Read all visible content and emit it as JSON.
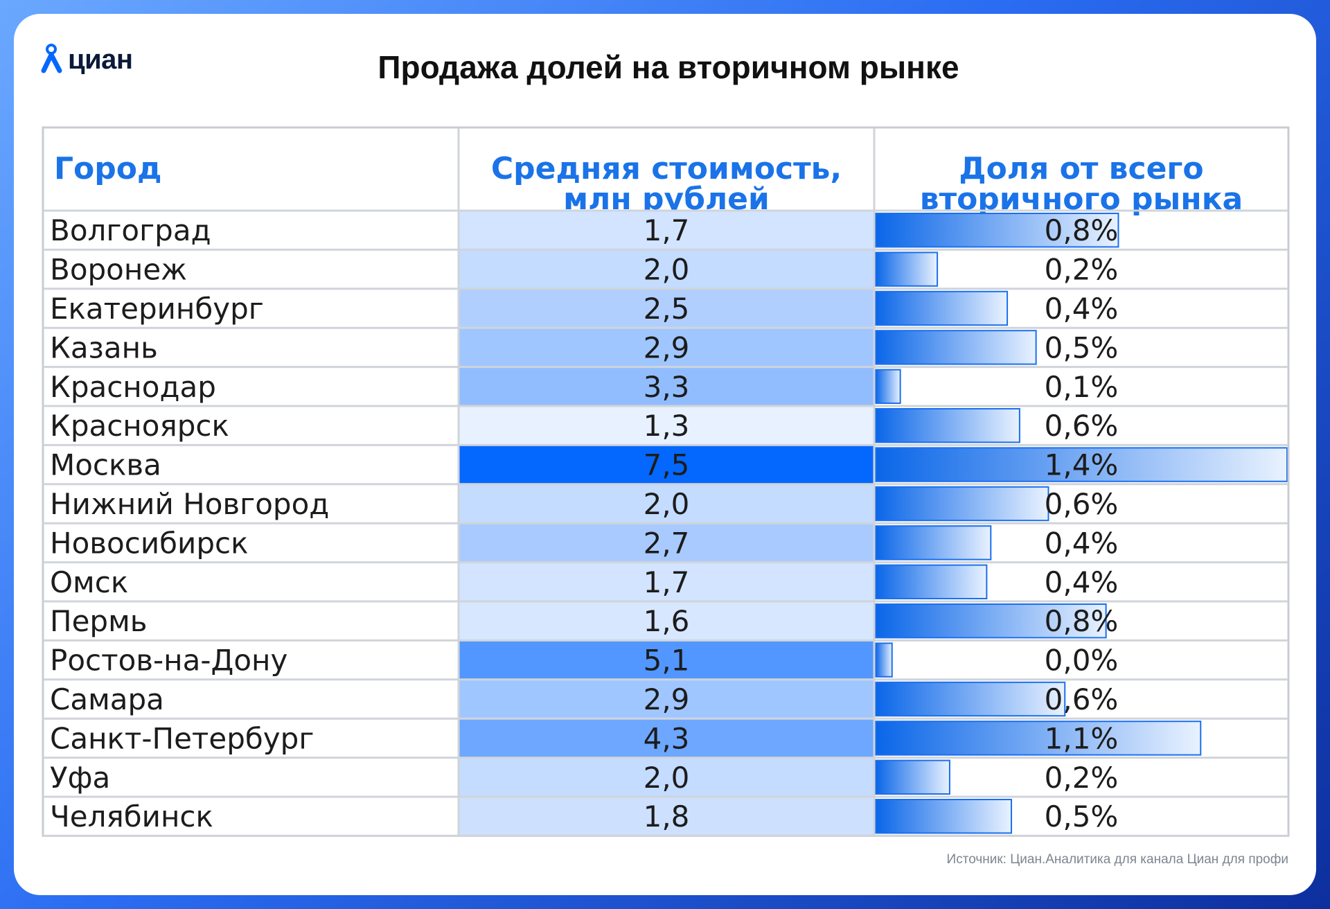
{
  "brand": {
    "logo_text": "циан",
    "logo_icon": "pin-person-icon",
    "accent": "#0468ff"
  },
  "title": "Продажа долей на вторичном рынке",
  "source": "Источник: Циан.Аналитика для канала Циан для профи",
  "chart_data": {
    "type": "table",
    "columns": [
      "Город",
      "Средняя стоимость, млн рублей",
      "Доля от всего вторичного рынка"
    ],
    "header_color": "#1a73e8",
    "categories": [
      "Волгоград",
      "Воронеж",
      "Екатеринбург",
      "Казань",
      "Краснодар",
      "Красноярск",
      "Москва",
      "Нижний Новгород",
      "Новосибирск",
      "Омск",
      "Пермь",
      "Ростов-на-Дону",
      "Самара",
      "Санкт-Петербург",
      "Уфа",
      "Челябинск"
    ],
    "series": [
      {
        "name": "Средняя стоимость, млн рублей",
        "values": [
          1.7,
          2.0,
          2.5,
          2.9,
          3.3,
          1.3,
          7.5,
          2.0,
          2.7,
          1.7,
          1.6,
          5.1,
          2.9,
          4.3,
          2.0,
          1.8
        ],
        "labels": [
          "1,7",
          "2,0",
          "2,5",
          "2,9",
          "3,3",
          "1,3",
          "7,5",
          "2,0",
          "2,7",
          "1,7",
          "1,6",
          "5,1",
          "2,9",
          "4,3",
          "2,0",
          "1,8"
        ],
        "encoding": "cell-color-scale",
        "color_low": "#e8f1ff",
        "color_high": "#0468ff"
      },
      {
        "name": "Доля от всего вторичного рынка",
        "values": [
          0.8,
          0.2,
          0.4,
          0.5,
          0.1,
          0.6,
          1.4,
          0.6,
          0.4,
          0.4,
          0.8,
          0.0,
          0.6,
          1.1,
          0.2,
          0.5
        ],
        "bar_fraction": [
          0.59,
          0.15,
          0.32,
          0.39,
          0.06,
          0.35,
          1.0,
          0.42,
          0.28,
          0.27,
          0.56,
          0.04,
          0.46,
          0.79,
          0.18,
          0.33
        ],
        "labels": [
          "0,8%",
          "0,2%",
          "0,4%",
          "0,5%",
          "0,1%",
          "0,6%",
          "1,4%",
          "0,6%",
          "0,4%",
          "0,4%",
          "0,8%",
          "0,0%",
          "0,6%",
          "1,1%",
          "0,2%",
          "0,5%"
        ],
        "encoding": "data-bar",
        "bar_color_start": "#0a66e8",
        "bar_color_end": "#e9f2ff"
      }
    ]
  }
}
